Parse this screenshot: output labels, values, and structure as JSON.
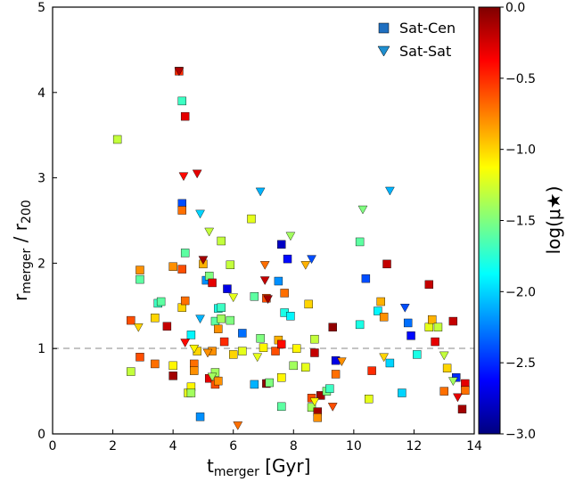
{
  "chart_data": {
    "type": "scatter",
    "xlabel": {
      "main": "t",
      "sub": "merger",
      "unit": " [Gyr]"
    },
    "ylabel": {
      "main": "r",
      "sub": "merger",
      "sep": " / r",
      "sub2": "200"
    },
    "xlim": [
      0,
      14
    ],
    "ylim": [
      0,
      5
    ],
    "xticks": [
      "0",
      "2",
      "4",
      "6",
      "8",
      "10",
      "12",
      "14"
    ],
    "yticks": [
      "0",
      "1",
      "2",
      "3",
      "4",
      "5"
    ],
    "reference_line": {
      "y": 1,
      "style": "dashed",
      "color": "#b0b0b0"
    },
    "colorbar": {
      "label": "log(μ★)",
      "range": [
        -3.0,
        0.0
      ],
      "ticks": [
        "0.0",
        "−0.5",
        "−1.0",
        "−1.5",
        "−2.0",
        "−2.5",
        "−3.0"
      ],
      "colormap": "jet"
    },
    "legend": {
      "position": "top-right",
      "entries": [
        "Sat-Cen",
        "Sat-Sat"
      ]
    },
    "series": [
      {
        "name": "Sat-Cen",
        "marker": "square",
        "points": [
          [
            2.15,
            3.45,
            -1.3
          ],
          [
            2.6,
            0.73,
            -1.3
          ],
          [
            2.6,
            1.33,
            -0.6
          ],
          [
            2.9,
            1.92,
            -0.8
          ],
          [
            2.9,
            1.81,
            -1.6
          ],
          [
            2.9,
            0.9,
            -0.6
          ],
          [
            3.4,
            0.82,
            -0.7
          ],
          [
            3.4,
            1.36,
            -1.0
          ],
          [
            3.5,
            1.53,
            -1.7
          ],
          [
            3.6,
            1.55,
            -1.6
          ],
          [
            3.8,
            1.26,
            -0.2
          ],
          [
            4.0,
            1.96,
            -0.8
          ],
          [
            4.0,
            0.68,
            -0.1
          ],
          [
            4.0,
            0.8,
            -1.1
          ],
          [
            4.2,
            4.25,
            -0.5
          ],
          [
            4.3,
            3.9,
            -1.7
          ],
          [
            4.3,
            2.7,
            -2.4
          ],
          [
            4.3,
            2.62,
            -0.7
          ],
          [
            4.3,
            1.93,
            -0.6
          ],
          [
            4.3,
            1.48,
            -1.0
          ],
          [
            4.4,
            3.72,
            -0.3
          ],
          [
            4.4,
            2.12,
            -1.6
          ],
          [
            4.4,
            1.56,
            -0.7
          ],
          [
            4.5,
            0.48,
            -1.2
          ],
          [
            4.6,
            0.55,
            -1.1
          ],
          [
            4.6,
            0.48,
            -1.4
          ],
          [
            4.6,
            1.16,
            -1.9
          ],
          [
            4.7,
            0.82,
            -0.7
          ],
          [
            4.7,
            0.74,
            -0.8
          ],
          [
            4.8,
            0.97,
            -1.0
          ],
          [
            4.9,
            0.2,
            -2.2
          ],
          [
            5.0,
            1.99,
            -0.9
          ],
          [
            5.1,
            1.8,
            -2.2
          ],
          [
            5.2,
            0.65,
            -0.3
          ],
          [
            5.2,
            1.85,
            -1.5
          ],
          [
            5.3,
            1.77,
            -0.3
          ],
          [
            5.3,
            0.97,
            -0.8
          ],
          [
            5.4,
            0.58,
            -0.6
          ],
          [
            5.4,
            1.32,
            -1.6
          ],
          [
            5.4,
            0.72,
            -1.4
          ],
          [
            5.5,
            0.62,
            -0.8
          ],
          [
            5.5,
            1.23,
            -0.8
          ],
          [
            5.5,
            1.47,
            -1.8
          ],
          [
            5.6,
            1.48,
            -1.7
          ],
          [
            5.6,
            1.35,
            -1.4
          ],
          [
            5.6,
            2.26,
            -1.3
          ],
          [
            5.7,
            1.08,
            -0.5
          ],
          [
            5.8,
            1.7,
            -2.7
          ],
          [
            5.9,
            1.98,
            -1.3
          ],
          [
            5.9,
            1.33,
            -1.5
          ],
          [
            6.0,
            0.93,
            -1.0
          ],
          [
            6.3,
            1.18,
            -2.3
          ],
          [
            6.3,
            0.97,
            -1.2
          ],
          [
            6.6,
            2.52,
            -1.2
          ],
          [
            6.7,
            1.61,
            -1.6
          ],
          [
            6.7,
            0.58,
            -2.1
          ],
          [
            6.9,
            1.12,
            -1.5
          ],
          [
            7.0,
            1.01,
            -1.1
          ],
          [
            7.1,
            0.59,
            -0.05
          ],
          [
            7.1,
            1.59,
            -0.6
          ],
          [
            7.2,
            0.6,
            -1.5
          ],
          [
            7.4,
            0.97,
            -0.6
          ],
          [
            7.5,
            1.79,
            -2.2
          ],
          [
            7.5,
            1.1,
            -0.9
          ],
          [
            7.6,
            0.66,
            -1.1
          ],
          [
            7.6,
            0.32,
            -1.6
          ],
          [
            7.6,
            2.22,
            -2.8
          ],
          [
            7.6,
            1.05,
            -0.4
          ],
          [
            7.7,
            1.65,
            -0.7
          ],
          [
            7.7,
            1.42,
            -1.8
          ],
          [
            7.8,
            2.05,
            -2.6
          ],
          [
            7.9,
            1.38,
            -1.9
          ],
          [
            8.0,
            0.8,
            -1.4
          ],
          [
            8.1,
            1.0,
            -1.1
          ],
          [
            8.4,
            0.78,
            -1.2
          ],
          [
            8.5,
            1.52,
            -1.0
          ],
          [
            8.6,
            0.42,
            -0.6
          ],
          [
            8.6,
            0.31,
            -1.4
          ],
          [
            8.7,
            1.11,
            -1.3
          ],
          [
            8.7,
            0.95,
            -0.2
          ],
          [
            8.8,
            0.26,
            -0.1
          ],
          [
            8.8,
            0.19,
            -0.8
          ],
          [
            8.9,
            0.45,
            -0.1
          ],
          [
            9.1,
            0.5,
            -1.5
          ],
          [
            9.2,
            0.53,
            -1.7
          ],
          [
            9.3,
            1.25,
            -0.05
          ],
          [
            9.4,
            0.86,
            -2.7
          ],
          [
            9.4,
            0.7,
            -0.7
          ],
          [
            10.2,
            1.28,
            -1.8
          ],
          [
            10.2,
            2.25,
            -1.6
          ],
          [
            10.4,
            1.82,
            -2.4
          ],
          [
            10.5,
            0.41,
            -1.2
          ],
          [
            10.6,
            0.74,
            -0.5
          ],
          [
            10.8,
            1.44,
            -1.9
          ],
          [
            10.9,
            1.55,
            -0.9
          ],
          [
            11.0,
            1.37,
            -0.8
          ],
          [
            11.1,
            1.99,
            -0.2
          ],
          [
            11.2,
            0.83,
            -2.0
          ],
          [
            11.6,
            0.48,
            -2.0
          ],
          [
            11.8,
            1.3,
            -2.3
          ],
          [
            11.9,
            1.15,
            -2.6
          ],
          [
            12.1,
            0.93,
            -1.8
          ],
          [
            12.5,
            1.25,
            -1.2
          ],
          [
            12.5,
            1.75,
            -0.2
          ],
          [
            12.6,
            1.34,
            -0.9
          ],
          [
            12.7,
            1.08,
            -0.3
          ],
          [
            12.8,
            1.25,
            -1.3
          ],
          [
            13.0,
            0.5,
            -0.7
          ],
          [
            13.1,
            0.77,
            -1.0
          ],
          [
            13.3,
            1.32,
            -0.2
          ],
          [
            13.4,
            0.66,
            -2.5
          ],
          [
            13.6,
            0.29,
            -0.1
          ],
          [
            13.7,
            0.59,
            -0.3
          ],
          [
            13.7,
            0.51,
            -0.7
          ]
        ]
      },
      {
        "name": "Sat-Sat",
        "marker": "triangle-down",
        "points": [
          [
            2.85,
            1.25,
            -1.0
          ],
          [
            4.2,
            4.25,
            -0.15
          ],
          [
            4.35,
            3.02,
            -0.4
          ],
          [
            4.4,
            1.07,
            -0.4
          ],
          [
            4.7,
            1.0,
            -1.1
          ],
          [
            4.8,
            3.05,
            -0.3
          ],
          [
            4.9,
            1.35,
            -2.1
          ],
          [
            4.9,
            2.58,
            -2.0
          ],
          [
            5.0,
            2.04,
            -0.1
          ],
          [
            5.15,
            0.95,
            -0.8
          ],
          [
            5.2,
            2.37,
            -1.3
          ],
          [
            5.3,
            0.67,
            -1.4
          ],
          [
            6.0,
            1.6,
            -1.2
          ],
          [
            6.15,
            0.1,
            -0.7
          ],
          [
            6.8,
            0.9,
            -1.2
          ],
          [
            6.9,
            2.84,
            -2.1
          ],
          [
            7.05,
            1.98,
            -0.7
          ],
          [
            7.05,
            1.8,
            -0.2
          ],
          [
            7.15,
            1.58,
            -0.1
          ],
          [
            7.9,
            2.32,
            -1.4
          ],
          [
            8.4,
            1.98,
            -0.9
          ],
          [
            8.6,
            2.05,
            -2.4
          ],
          [
            8.7,
            0.38,
            -1.1
          ],
          [
            9.3,
            0.32,
            -0.6
          ],
          [
            9.6,
            0.85,
            -0.8
          ],
          [
            10.3,
            2.63,
            -1.5
          ],
          [
            11.0,
            0.9,
            -1.0
          ],
          [
            11.2,
            2.85,
            -2.1
          ],
          [
            11.7,
            1.48,
            -2.4
          ],
          [
            13.0,
            0.92,
            -1.3
          ],
          [
            13.3,
            0.62,
            -1.4
          ],
          [
            13.45,
            0.43,
            -0.3
          ]
        ]
      }
    ]
  }
}
